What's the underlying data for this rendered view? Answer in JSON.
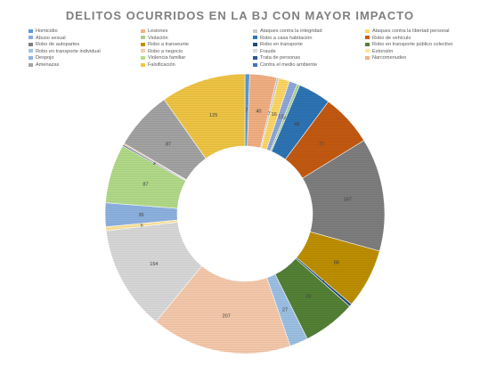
{
  "chart_data": {
    "type": "donut",
    "title": "DELITOS OCURRIDOS EN LA BJ CON MAYOR IMPACTO",
    "legend_placement": "top",
    "slices": [
      {
        "name": "Homicidio",
        "value": 7,
        "color": "#5b9bd5"
      },
      {
        "name": "Lesiones",
        "value": 40,
        "color": "#f4b183"
      },
      {
        "name": "Ataques  contra la integridad",
        "value": 3,
        "color": "#c9c9c9"
      },
      {
        "name": "Ataques  contra la libertad personal",
        "value": 16,
        "color": "#ffd966"
      },
      {
        "name": "Abuso sexual",
        "value": 12,
        "color": "#8faadc"
      },
      {
        "name": "Violación",
        "value": 4,
        "color": "#a9d18e"
      },
      {
        "name": "Robo a casa habitación",
        "value": 48,
        "color": "#2e75b6"
      },
      {
        "name": "Robo de vehículo",
        "value": 77,
        "color": "#c55a11"
      },
      {
        "name": "Robo de autopartes",
        "value": 167,
        "color": "#7f7f7f"
      },
      {
        "name": "Robo a transeunte",
        "value": 88,
        "color": "#bf9000"
      },
      {
        "name": "Robo en transporte",
        "value": 4,
        "color": "#1f4e79"
      },
      {
        "name": "Robo en transporte público colectivo",
        "value": 78,
        "color": "#548235"
      },
      {
        "name": "Robo en transporte individual",
        "value": 27,
        "color": "#9dc3e6"
      },
      {
        "name": "Robo a negocio",
        "value": 207,
        "color": "#f8cbad"
      },
      {
        "name": "Fraude",
        "value": 154,
        "color": "#dbdbdb"
      },
      {
        "name": "Extorsión",
        "value": 6,
        "color": "#ffe699"
      },
      {
        "name": "Despojo",
        "value": 35,
        "color": "#8eb4e3"
      },
      {
        "name": "Violencia familiar",
        "value": 87,
        "color": "#b4dd8a"
      },
      {
        "name": "Trata de personas",
        "value": 2,
        "color": "#2f5597"
      },
      {
        "name": "Narcomenudeo",
        "value": 2,
        "color": "#f4b183"
      },
      {
        "name": "Amenazas",
        "value": 87,
        "color": "#a5a5a5"
      },
      {
        "name": "Falsificación",
        "value": 125,
        "color": "#f2c744"
      },
      {
        "name": "Contra el medio ambiente",
        "value": 0,
        "color": "#4472c4"
      }
    ],
    "labels": [
      "7",
      "40",
      "3",
      "16",
      "12",
      "48",
      "77",
      "167",
      "88",
      "4",
      "78",
      "27",
      "207",
      "154",
      "6",
      "35",
      "87",
      "2",
      "87",
      "125"
    ]
  }
}
